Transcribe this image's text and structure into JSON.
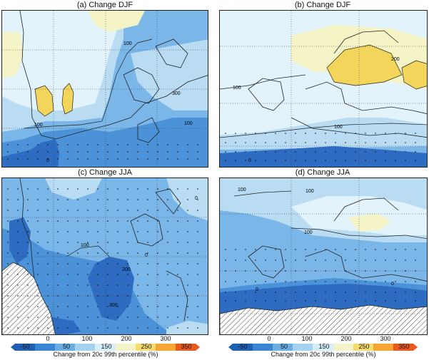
{
  "panels": [
    {
      "id": "a",
      "title": "(a) Change DJF",
      "contour_labels": [
        "100",
        "100",
        "300",
        "100",
        "0"
      ]
    },
    {
      "id": "b",
      "title": "(b) Change DJF",
      "contour_labels": [
        "200",
        "100",
        "100",
        "0"
      ]
    },
    {
      "id": "c",
      "title": "(c) Change JJA",
      "contour_labels": [
        "0",
        "0",
        "100",
        "200",
        "300"
      ]
    },
    {
      "id": "d",
      "title": "(d) Change JJA",
      "contour_labels": [
        "100",
        "100",
        "100",
        "0",
        "0"
      ]
    }
  ],
  "axis_labels_c": [
    "0",
    "100",
    "200",
    "300"
  ],
  "axis_labels_d": [
    "0",
    "100",
    "200",
    "300"
  ],
  "colorbar": {
    "ticks": [
      "-50",
      "50",
      "150",
      "250",
      "350"
    ],
    "label": "Change from 20c 99th percentile (%)",
    "colors": [
      "#1f5fb4",
      "#3a86d4",
      "#6aaee4",
      "#a5d2f0",
      "#d6eef8",
      "#f3f3c8",
      "#f6dc6e",
      "#f5a635",
      "#e95a1e"
    ]
  },
  "palette": {
    "deep": "#2d6cc0",
    "mid": "#4b92d8",
    "light": "#7ab6e7",
    "pale": "#b9dcf3",
    "ice": "#e3f3fb",
    "cream": "#f5f4c6",
    "gold": "#f3d55b"
  }
}
